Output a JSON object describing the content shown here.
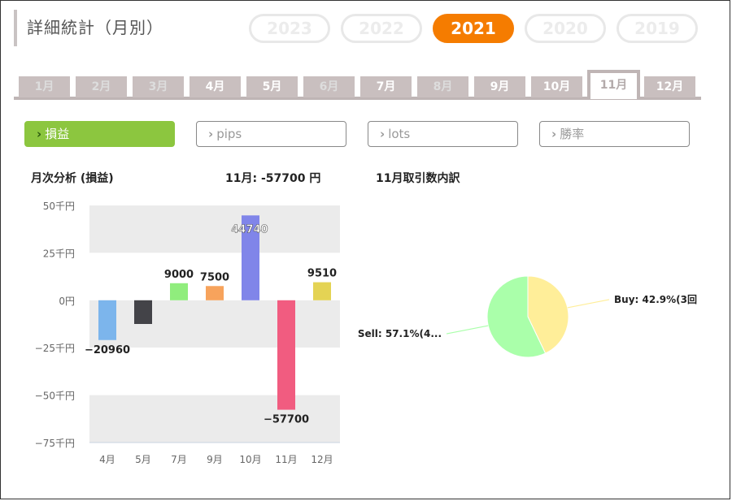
{
  "header": {
    "title": "詳細統計（月別）",
    "years": [
      {
        "label": "2023",
        "active": false
      },
      {
        "label": "2022",
        "active": false
      },
      {
        "label": "2021",
        "active": true
      },
      {
        "label": "2020",
        "active": false
      },
      {
        "label": "2019",
        "active": false
      }
    ]
  },
  "months": [
    {
      "label": "1月",
      "enabled": false,
      "active": false
    },
    {
      "label": "2月",
      "enabled": false,
      "active": false
    },
    {
      "label": "3月",
      "enabled": false,
      "active": false
    },
    {
      "label": "4月",
      "enabled": true,
      "active": false
    },
    {
      "label": "5月",
      "enabled": true,
      "active": false
    },
    {
      "label": "6月",
      "enabled": false,
      "active": false
    },
    {
      "label": "7月",
      "enabled": true,
      "active": false
    },
    {
      "label": "8月",
      "enabled": false,
      "active": false
    },
    {
      "label": "9月",
      "enabled": true,
      "active": false
    },
    {
      "label": "10月",
      "enabled": true,
      "active": false
    },
    {
      "label": "11月",
      "enabled": true,
      "active": true
    },
    {
      "label": "12月",
      "enabled": true,
      "active": false
    }
  ],
  "metrics": [
    {
      "label": "損益",
      "active": true
    },
    {
      "label": "pips",
      "active": false
    },
    {
      "label": "lots",
      "active": false
    },
    {
      "label": "勝率",
      "active": false
    }
  ],
  "bar_chart": {
    "title": "月次分析 (損益)",
    "month_total": "11月:  -57700 円"
  },
  "pie_chart": {
    "title": "11月取引数内訳"
  },
  "chart_data": [
    {
      "type": "bar",
      "categories": [
        "4月",
        "5月",
        "7月",
        "9月",
        "10月",
        "11月",
        "12月"
      ],
      "values": [
        -20960,
        -12500,
        9000,
        7500,
        44740,
        -57700,
        9510
      ],
      "labels": [
        "-20960",
        "",
        "9000",
        "7500",
        "44740",
        "-57700",
        "9510"
      ],
      "colors": [
        "#7cb5ec",
        "#434348",
        "#90ed7d",
        "#f7a35c",
        "#8085e9",
        "#f15c80",
        "#e4d354"
      ],
      "yticks": [
        50000,
        25000,
        0,
        -25000,
        -50000,
        -75000
      ],
      "ytick_labels": [
        "50千円",
        "25千円",
        "0円",
        "−25千円",
        "−50千円",
        "−75千円"
      ],
      "ylim": [
        -75000,
        50000
      ],
      "grid": "alternating bands"
    },
    {
      "type": "pie",
      "slices": [
        {
          "label": "Buy: 42.9%(3回",
          "value": 42.9,
          "color": "#ffee99"
        },
        {
          "label": "Sell: 57.1%(4...",
          "value": 57.1,
          "color": "#aaffaa"
        }
      ]
    }
  ]
}
